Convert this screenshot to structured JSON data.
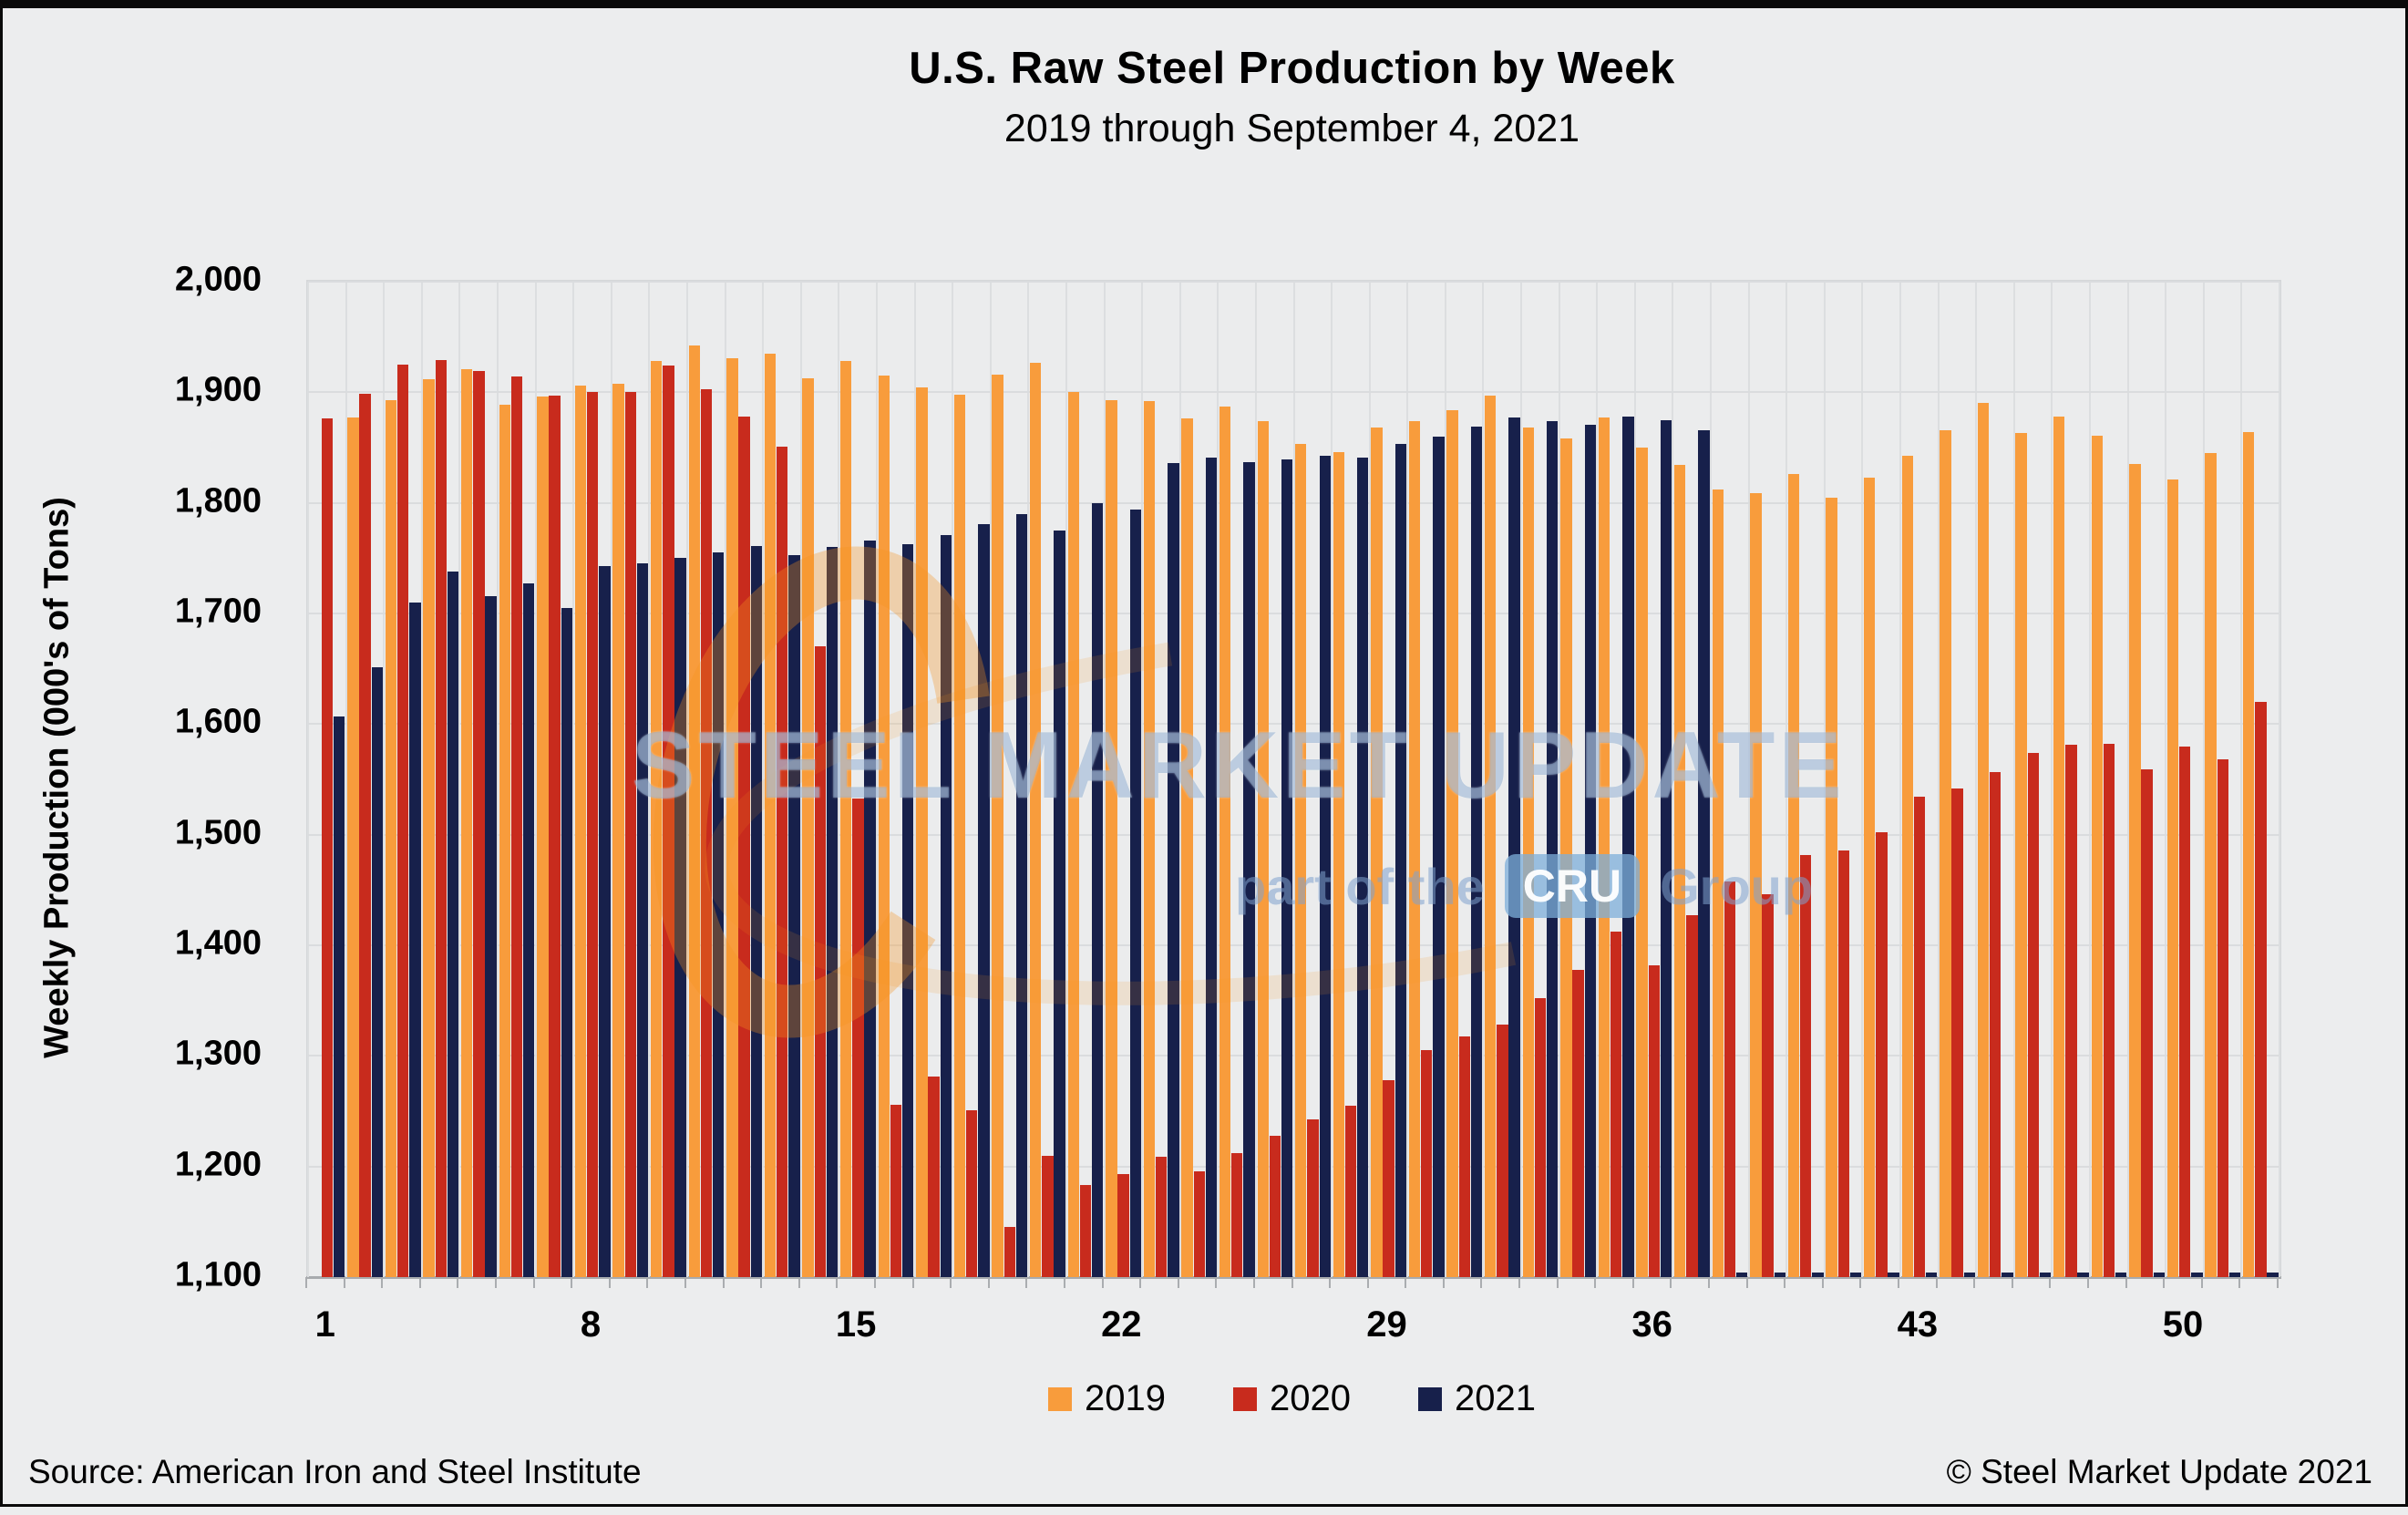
{
  "page": {
    "title": "U.S. Raw Steel Production by Week",
    "subtitle": "2019 through September 4, 2021",
    "source": "Source: American Iron and Steel Institute",
    "copyright": "© Steel Market Update 2021"
  },
  "watermark": {
    "main": "STEEL MARKET UPDATE",
    "sub_prefix": "part of the",
    "sub_box": "CRU",
    "sub_suffix": "Group"
  },
  "colors": {
    "series_2019": "#F89C3C",
    "series_2020": "#C82B1D",
    "series_2021": "#17204B",
    "plot_background": "#EBECED",
    "gridline": "#DADCDE",
    "axis": "#A8ABAE",
    "watermark_blue": "#85A6CB",
    "watermark_orange": "#F6921E"
  },
  "chart_data": {
    "type": "bar",
    "title": "U.S. Raw Steel Production by Week",
    "subtitle": "2019 through September 4, 2021",
    "xlabel": "",
    "ylabel": "Weekly Production (000's of Tons)",
    "ylim": [
      1100,
      2000
    ],
    "ytick_step": 100,
    "yticks": [
      1100,
      1200,
      1300,
      1400,
      1500,
      1600,
      1700,
      1800,
      1900,
      2000
    ],
    "grid": true,
    "legend_position": "bottom",
    "categories": [
      1,
      2,
      3,
      4,
      5,
      6,
      7,
      8,
      9,
      10,
      11,
      12,
      13,
      14,
      15,
      16,
      17,
      18,
      19,
      20,
      21,
      22,
      23,
      24,
      25,
      26,
      27,
      28,
      29,
      30,
      31,
      32,
      33,
      34,
      35,
      36,
      37,
      38,
      39,
      40,
      41,
      42,
      43,
      44,
      45,
      46,
      47,
      48,
      49,
      50,
      51,
      52
    ],
    "xtick_labels": [
      1,
      8,
      15,
      22,
      29,
      36,
      43,
      50
    ],
    "series": [
      {
        "name": "2019",
        "color": "#F89C3C",
        "values": [
          null,
          1877,
          1893,
          1912,
          1921,
          1889,
          1896,
          1906,
          1908,
          1928,
          1942,
          1931,
          1935,
          1913,
          1928,
          1915,
          1904,
          1898,
          1916,
          1927,
          1900,
          1893,
          1892,
          1876,
          1887,
          1874,
          1853,
          1846,
          1868,
          1874,
          1884,
          1897,
          1868,
          1858,
          1877,
          1850,
          1834,
          1812,
          1809,
          1826,
          1805,
          1823,
          1843,
          1866,
          1890,
          1863,
          1878,
          1861,
          1835,
          1821,
          1845,
          1864
        ]
      },
      {
        "name": "2020",
        "color": "#C82B1D",
        "values": [
          1876,
          1899,
          1925,
          1929,
          1919,
          1914,
          1897,
          1900,
          1900,
          1924,
          1903,
          1878,
          1851,
          1670,
          1533,
          1256,
          1281,
          1251,
          1145,
          1210,
          1183,
          1193,
          1209,
          1196,
          1212,
          1228,
          1243,
          1255,
          1278,
          1305,
          1318,
          1328,
          1352,
          1378,
          1412,
          1382,
          1427,
          1458,
          1446,
          1482,
          1486,
          1502,
          1534,
          1542,
          1557,
          1574,
          1581,
          1582,
          1559,
          1580,
          1568,
          1620
        ]
      },
      {
        "name": "2021",
        "color": "#17204B",
        "values": [
          1607,
          1651,
          1710,
          1738,
          1716,
          1727,
          1705,
          1743,
          1745,
          1750,
          1755,
          1761,
          1753,
          1760,
          1766,
          1763,
          1771,
          1781,
          1790,
          1775,
          1800,
          1794,
          1836,
          1841,
          1837,
          1839,
          1843,
          1841,
          1853,
          1860,
          1869,
          1877,
          1874,
          1871,
          1878,
          1875,
          1866,
          0,
          0,
          0,
          0,
          0,
          0,
          0,
          0,
          0,
          0,
          0,
          0,
          0,
          0,
          0
        ]
      }
    ]
  }
}
